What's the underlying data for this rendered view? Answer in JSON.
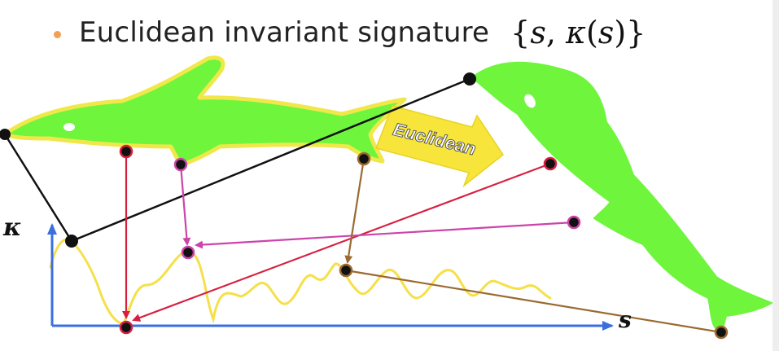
{
  "slide": {
    "bullet_text": "Euclidean invariant signature",
    "math": {
      "open": "{",
      "s": "s",
      "comma": ", ",
      "kappa": "κ",
      "paren_open": "(",
      "s2": "s",
      "paren_close": ")",
      "close": "}"
    }
  },
  "diagram": {
    "transform_label": "Euclidean",
    "axis_y_label": "κ",
    "axis_x_label": "s"
  },
  "colors": {
    "fish_fill": "#6ef53c",
    "fish_outline": "#f0e84a",
    "axis": "#3b6fe0",
    "curve": "#f5e04a",
    "red_link": "#d62040",
    "magenta_link": "#cc44aa",
    "brown_link": "#9a6a30",
    "black_link": "#111111",
    "arrow_fill": "#f7e53c"
  }
}
